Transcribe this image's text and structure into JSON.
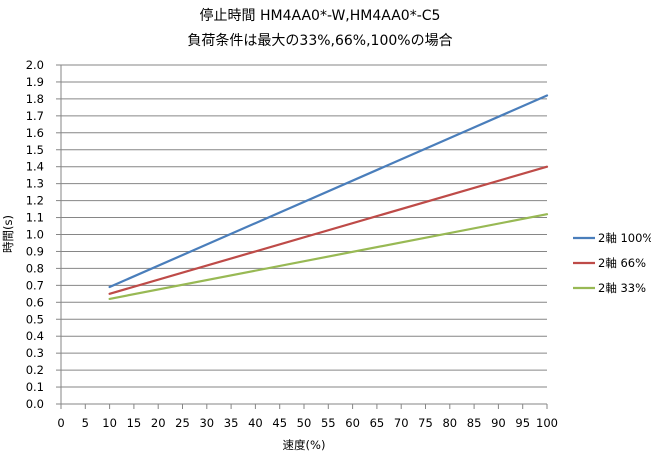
{
  "chart_data": {
    "type": "line",
    "title": "停止時間 HM4AA0*-W,HM4AA0*-C5",
    "subtitle": "負荷条件は最大の33%,66%,100%の場合",
    "xlabel": "速度(%)",
    "ylabel": "時間(s)",
    "xlim": [
      0,
      100
    ],
    "ylim": [
      0.0,
      2.0
    ],
    "x_ticks": [
      "0",
      "5",
      "10",
      "15",
      "20",
      "25",
      "30",
      "35",
      "40",
      "45",
      "50",
      "55",
      "60",
      "65",
      "70",
      "75",
      "80",
      "85",
      "90",
      "95",
      "100"
    ],
    "y_ticks": [
      "0.0",
      "0.1",
      "0.2",
      "0.3",
      "0.4",
      "0.5",
      "0.6",
      "0.7",
      "0.8",
      "0.9",
      "1.0",
      "1.1",
      "1.2",
      "1.3",
      "1.4",
      "1.5",
      "1.6",
      "1.7",
      "1.8",
      "1.9",
      "2.0"
    ],
    "grid": "horizontal",
    "legend_position": "right",
    "series": [
      {
        "name": "2軸 100%",
        "color": "#4a7ebb",
        "x": [
          10,
          100
        ],
        "y": [
          0.69,
          1.82
        ]
      },
      {
        "name": "2軸 66%",
        "color": "#be4b48",
        "x": [
          10,
          100
        ],
        "y": [
          0.65,
          1.4
        ]
      },
      {
        "name": "2軸 33%",
        "color": "#98b954",
        "x": [
          10,
          100
        ],
        "y": [
          0.62,
          1.12
        ]
      }
    ]
  }
}
